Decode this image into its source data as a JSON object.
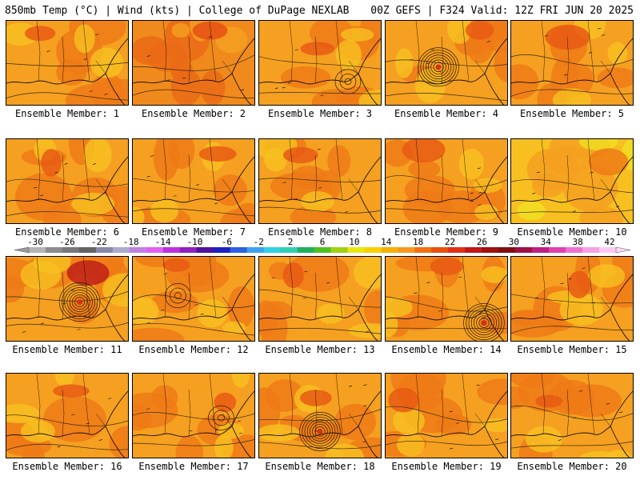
{
  "header": {
    "left": "850mb Temp (°C) | Wind (kts) | College of DuPage NEXLAB",
    "right": "00Z GEFS | F324 Valid: 12Z FRI JUN 20 2025"
  },
  "colorbar": {
    "labels": [
      "-30",
      "-26",
      "-22",
      "-18",
      "-14",
      "-10",
      "-6",
      "-2",
      "2",
      "6",
      "10",
      "14",
      "18",
      "22",
      "26",
      "30",
      "34",
      "38",
      "42"
    ],
    "colors": [
      "#b4b4b4",
      "#8c8c8c",
      "#787878",
      "#646464",
      "#8888aa",
      "#aaaacc",
      "#c080e0",
      "#e060f0",
      "#c030e0",
      "#9020c0",
      "#5010a0",
      "#2020c0",
      "#3060e0",
      "#40a0f0",
      "#30d0e0",
      "#30d0b0",
      "#20b060",
      "#50c020",
      "#a0d010",
      "#e8e810",
      "#f8d000",
      "#f8b000",
      "#f89820",
      "#f07010",
      "#e85010",
      "#e03018",
      "#c01818",
      "#a01010",
      "#801010",
      "#a01048",
      "#c02080",
      "#e040b0",
      "#f070d0",
      "#f8a0e8",
      "#fcc8f4"
    ]
  },
  "members": [
    {
      "label": "Ensemble Member: 1",
      "storm": null,
      "base": "#f5a020",
      "warm": "#ef7a18",
      "cool": "#f7c020",
      "hot": "#e85a14"
    },
    {
      "label": "Ensemble Member: 2",
      "storm": null,
      "base": "#f08a1c",
      "warm": "#ea6a16",
      "cool": "#f5a020",
      "hot": "#e55014"
    },
    {
      "label": "Ensemble Member: 3",
      "storm": "weak",
      "base": "#f5a020",
      "warm": "#ef7a18",
      "cool": "#f7c020",
      "hot": "#e85a14"
    },
    {
      "label": "Ensemble Member: 4",
      "storm": "strong",
      "base": "#f5a020",
      "warm": "#ef7a18",
      "cool": "#f7c020",
      "hot": "#e85a14"
    },
    {
      "label": "Ensemble Member: 5",
      "storm": null,
      "base": "#f5a020",
      "warm": "#ef7a18",
      "cool": "#f7c020",
      "hot": "#e85a14"
    },
    {
      "label": "Ensemble Member: 6",
      "storm": null,
      "base": "#f5a020",
      "warm": "#ef7a18",
      "cool": "#f7c020",
      "hot": "#e85a14"
    },
    {
      "label": "Ensemble Member: 7",
      "storm": null,
      "base": "#f5a020",
      "warm": "#ef7a18",
      "cool": "#f7c020",
      "hot": "#e85a14"
    },
    {
      "label": "Ensemble Member: 8",
      "storm": null,
      "base": "#f5a020",
      "warm": "#ef7a18",
      "cool": "#f7c020",
      "hot": "#e85a14"
    },
    {
      "label": "Ensemble Member: 9",
      "storm": null,
      "base": "#f5a020",
      "warm": "#ef7a18",
      "cool": "#f7c020",
      "hot": "#e85a14"
    },
    {
      "label": "Ensemble Member: 10",
      "storm": null,
      "base": "#f7c020",
      "warm": "#f5a020",
      "cool": "#f0e020",
      "hot": "#ef7a18"
    },
    {
      "label": "Ensemble Member: 11",
      "storm": "strong",
      "base": "#f5a020",
      "warm": "#ef7a18",
      "cool": "#f7c020",
      "hot": "#c02018"
    },
    {
      "label": "Ensemble Member: 12",
      "storm": "weak",
      "base": "#f5a020",
      "warm": "#ef7a18",
      "cool": "#f7c020",
      "hot": "#e85a14"
    },
    {
      "label": "Ensemble Member: 13",
      "storm": null,
      "base": "#f5a020",
      "warm": "#ef7a18",
      "cool": "#f7c020",
      "hot": "#e85a14"
    },
    {
      "label": "Ensemble Member: 14",
      "storm": "strong",
      "base": "#f5a020",
      "warm": "#ef7a18",
      "cool": "#f7c020",
      "hot": "#e85a14"
    },
    {
      "label": "Ensemble Member: 15",
      "storm": null,
      "base": "#f5a020",
      "warm": "#ef7a18",
      "cool": "#f7c020",
      "hot": "#e85a14"
    },
    {
      "label": "Ensemble Member: 16",
      "storm": null,
      "base": "#f5a020",
      "warm": "#ef7a18",
      "cool": "#f7c020",
      "hot": "#e85a14"
    },
    {
      "label": "Ensemble Member: 17",
      "storm": "weak",
      "base": "#f5a020",
      "warm": "#ef7a18",
      "cool": "#f7c020",
      "hot": "#e85a14"
    },
    {
      "label": "Ensemble Member: 18",
      "storm": "strong",
      "base": "#f5a020",
      "warm": "#ef7a18",
      "cool": "#f7c020",
      "hot": "#e85a14"
    },
    {
      "label": "Ensemble Member: 19",
      "storm": null,
      "base": "#f5a020",
      "warm": "#ef7a18",
      "cool": "#f7c020",
      "hot": "#e85a14"
    },
    {
      "label": "Ensemble Member: 20",
      "storm": null,
      "base": "#f5a020",
      "warm": "#ef7a18",
      "cool": "#f7c020",
      "hot": "#e85a14"
    }
  ]
}
